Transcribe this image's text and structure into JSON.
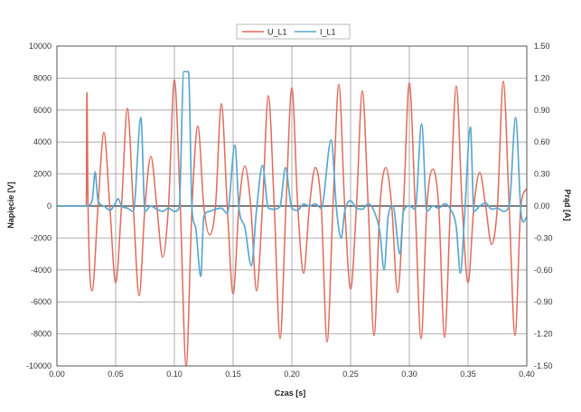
{
  "chart_data": {
    "type": "line",
    "xlabel": "Czas [s]",
    "ylabel_left": "Napięcie [V]",
    "ylabel_right": "Prąd [A]",
    "xlim": [
      0.0,
      0.4
    ],
    "ylim_left": [
      -10000,
      10000
    ],
    "ylim_right": [
      -1.5,
      1.5
    ],
    "x_ticks": [
      "0.00",
      "0.05",
      "0.10",
      "0.15",
      "0.20",
      "0.25",
      "0.30",
      "0.35",
      "0.40"
    ],
    "y_left_ticks": [
      "-10000",
      "-8000",
      "-6000",
      "-4000",
      "-2000",
      "0",
      "2000",
      "4000",
      "6000",
      "8000",
      "10000"
    ],
    "y_right_ticks": [
      "-1.50",
      "-1.20",
      "-0.90",
      "-0.60",
      "-0.30",
      "0.00",
      "0.30",
      "0.60",
      "0.90",
      "1.20",
      "1.50"
    ],
    "grid": true,
    "legend_position": "top-center",
    "series": [
      {
        "name": "U_L1",
        "axis": "left",
        "color": "#e06a5a",
        "points": [
          [
            0.0,
            0
          ],
          [
            0.025,
            0
          ],
          [
            0.0255,
            7100
          ],
          [
            0.0265,
            0
          ],
          [
            0.03,
            -5300
          ],
          [
            0.035,
            0
          ],
          [
            0.04,
            4600
          ],
          [
            0.045,
            0
          ],
          [
            0.05,
            -4800
          ],
          [
            0.055,
            0
          ],
          [
            0.06,
            6100
          ],
          [
            0.065,
            0
          ],
          [
            0.07,
            -5600
          ],
          [
            0.075,
            0
          ],
          [
            0.08,
            3100
          ],
          [
            0.085,
            0
          ],
          [
            0.09,
            -3200
          ],
          [
            0.095,
            0
          ],
          [
            0.1,
            7900
          ],
          [
            0.105,
            0
          ],
          [
            0.11,
            -10000
          ],
          [
            0.115,
            0
          ],
          [
            0.12,
            5000
          ],
          [
            0.125,
            0
          ],
          [
            0.13,
            -1800
          ],
          [
            0.135,
            0
          ],
          [
            0.14,
            6400
          ],
          [
            0.145,
            0
          ],
          [
            0.15,
            -5500
          ],
          [
            0.155,
            0
          ],
          [
            0.16,
            2500
          ],
          [
            0.165,
            0
          ],
          [
            0.17,
            -5300
          ],
          [
            0.175,
            0
          ],
          [
            0.18,
            6900
          ],
          [
            0.185,
            0
          ],
          [
            0.19,
            -8300
          ],
          [
            0.195,
            0
          ],
          [
            0.2,
            7400
          ],
          [
            0.205,
            0
          ],
          [
            0.21,
            -4200
          ],
          [
            0.215,
            0
          ],
          [
            0.22,
            2400
          ],
          [
            0.225,
            0
          ],
          [
            0.23,
            -8500
          ],
          [
            0.235,
            0
          ],
          [
            0.24,
            7600
          ],
          [
            0.245,
            0
          ],
          [
            0.25,
            -5200
          ],
          [
            0.255,
            0
          ],
          [
            0.26,
            7200
          ],
          [
            0.265,
            0
          ],
          [
            0.27,
            -8100
          ],
          [
            0.275,
            0
          ],
          [
            0.28,
            2400
          ],
          [
            0.285,
            0
          ],
          [
            0.29,
            -5400
          ],
          [
            0.295,
            0
          ],
          [
            0.3,
            7700
          ],
          [
            0.305,
            0
          ],
          [
            0.31,
            -8300
          ],
          [
            0.315,
            0
          ],
          [
            0.32,
            2300
          ],
          [
            0.325,
            0
          ],
          [
            0.33,
            -8200
          ],
          [
            0.335,
            0
          ],
          [
            0.34,
            7500
          ],
          [
            0.345,
            0
          ],
          [
            0.35,
            -4800
          ],
          [
            0.355,
            0
          ],
          [
            0.36,
            2100
          ],
          [
            0.365,
            0
          ],
          [
            0.37,
            -2400
          ],
          [
            0.375,
            0
          ],
          [
            0.38,
            7800
          ],
          [
            0.385,
            0
          ],
          [
            0.39,
            -8100
          ],
          [
            0.395,
            0
          ],
          [
            0.4,
            1100
          ]
        ]
      },
      {
        "name": "I_L1",
        "axis": "right",
        "color": "#5aa8d0",
        "points": [
          [
            0.0,
            0.0
          ],
          [
            0.025,
            0.0
          ],
          [
            0.03,
            0.05
          ],
          [
            0.0325,
            0.32
          ],
          [
            0.035,
            0.05
          ],
          [
            0.04,
            0.0
          ],
          [
            0.045,
            -0.04
          ],
          [
            0.05,
            0.03
          ],
          [
            0.052,
            0.07
          ],
          [
            0.055,
            0.0
          ],
          [
            0.06,
            -0.02
          ],
          [
            0.065,
            -0.05
          ],
          [
            0.0715,
            0.83
          ],
          [
            0.075,
            -0.05
          ],
          [
            0.08,
            0.0
          ],
          [
            0.085,
            -0.03
          ],
          [
            0.09,
            -0.05
          ],
          [
            0.095,
            -0.02
          ],
          [
            0.1,
            -0.05
          ],
          [
            0.104,
            -0.02
          ],
          [
            0.108,
            1.26
          ],
          [
            0.112,
            1.26
          ],
          [
            0.115,
            -0.03
          ],
          [
            0.118,
            -0.2
          ],
          [
            0.1225,
            -0.66
          ],
          [
            0.125,
            -0.1
          ],
          [
            0.13,
            -0.05
          ],
          [
            0.135,
            -0.03
          ],
          [
            0.14,
            -0.02
          ],
          [
            0.145,
            -0.07
          ],
          [
            0.1515,
            0.57
          ],
          [
            0.155,
            -0.02
          ],
          [
            0.16,
            -0.2
          ],
          [
            0.1655,
            -0.56
          ],
          [
            0.17,
            -0.03
          ],
          [
            0.175,
            0.38
          ],
          [
            0.18,
            -0.02
          ],
          [
            0.185,
            -0.03
          ],
          [
            0.19,
            0.0
          ],
          [
            0.1945,
            0.36
          ],
          [
            0.2,
            -0.02
          ],
          [
            0.205,
            -0.04
          ],
          [
            0.21,
            0.02
          ],
          [
            0.215,
            0.0
          ],
          [
            0.22,
            0.02
          ],
          [
            0.225,
            -0.02
          ],
          [
            0.2335,
            0.62
          ],
          [
            0.238,
            -0.03
          ],
          [
            0.242,
            -0.3
          ],
          [
            0.245,
            -0.05
          ],
          [
            0.25,
            0.05
          ],
          [
            0.255,
            -0.02
          ],
          [
            0.26,
            -0.03
          ],
          [
            0.265,
            0.02
          ],
          [
            0.27,
            -0.05
          ],
          [
            0.275,
            -0.25
          ],
          [
            0.2785,
            -0.6
          ],
          [
            0.282,
            -0.1
          ],
          [
            0.286,
            0.0
          ],
          [
            0.292,
            -0.45
          ],
          [
            0.295,
            -0.05
          ],
          [
            0.3,
            0.0
          ],
          [
            0.305,
            -0.03
          ],
          [
            0.3105,
            0.77
          ],
          [
            0.315,
            -0.05
          ],
          [
            0.32,
            0.0
          ],
          [
            0.325,
            -0.02
          ],
          [
            0.33,
            0.02
          ],
          [
            0.335,
            -0.03
          ],
          [
            0.34,
            -0.2
          ],
          [
            0.3435,
            -0.63
          ],
          [
            0.347,
            -0.1
          ],
          [
            0.352,
            0.74
          ],
          [
            0.355,
            -0.05
          ],
          [
            0.36,
            0.0
          ],
          [
            0.365,
            0.03
          ],
          [
            0.37,
            -0.03
          ],
          [
            0.375,
            -0.02
          ],
          [
            0.38,
            -0.05
          ],
          [
            0.385,
            0.0
          ],
          [
            0.3905,
            0.83
          ],
          [
            0.395,
            -0.05
          ],
          [
            0.397,
            -0.15
          ],
          [
            0.4,
            -0.1
          ]
        ]
      }
    ]
  }
}
